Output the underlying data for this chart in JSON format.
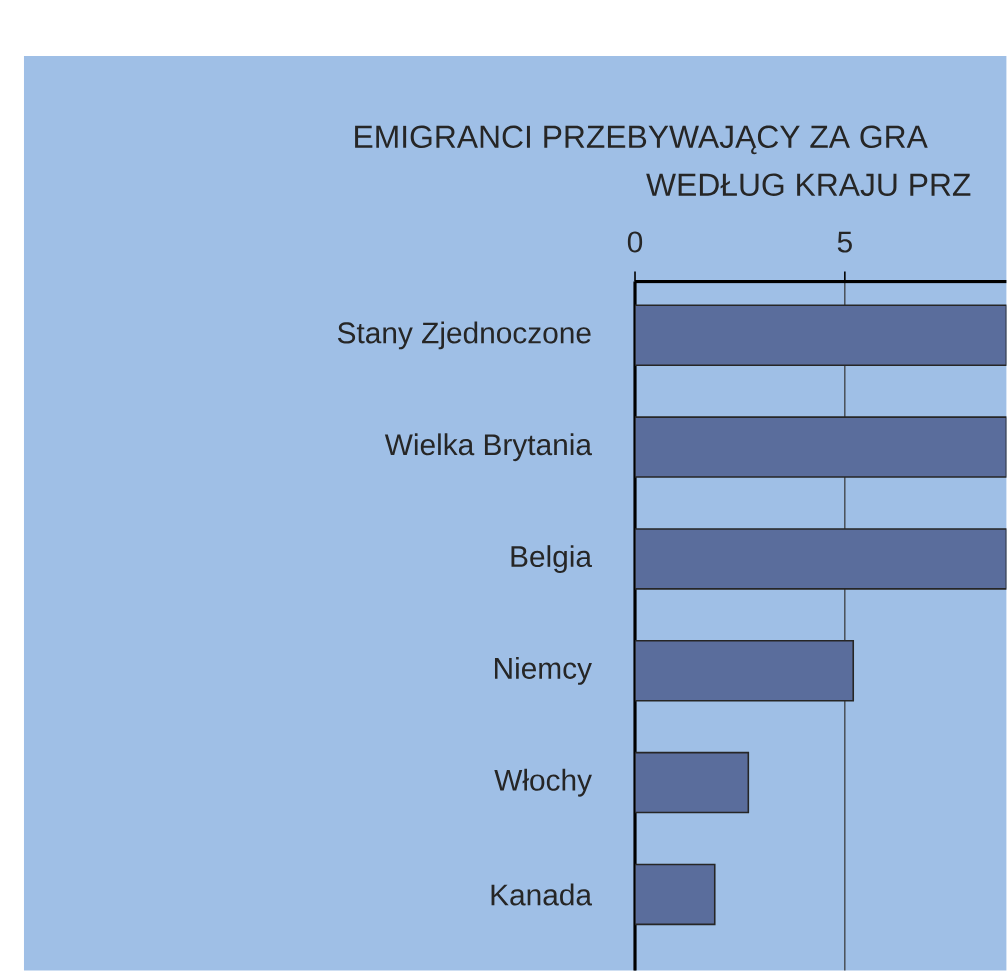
{
  "chart_data": {
    "type": "bar",
    "orientation": "horizontal",
    "title": "EMIGRANCI PRZEBYWAJĄCY ZA GRA",
    "subtitle": "WEDŁUG KRAJU PRZ",
    "categories": [
      "Stany Zjednoczone",
      "Wielka Brytania",
      "Belgia",
      "Niemcy",
      "Włochy",
      "Kanada"
    ],
    "values": [
      8.85,
      8.85,
      8.85,
      5.2,
      2.7,
      1.9
    ],
    "color": "#5a6d9c",
    "xlim": [
      0,
      8.85
    ],
    "xticks": [
      0,
      5
    ],
    "grid": "x"
  }
}
